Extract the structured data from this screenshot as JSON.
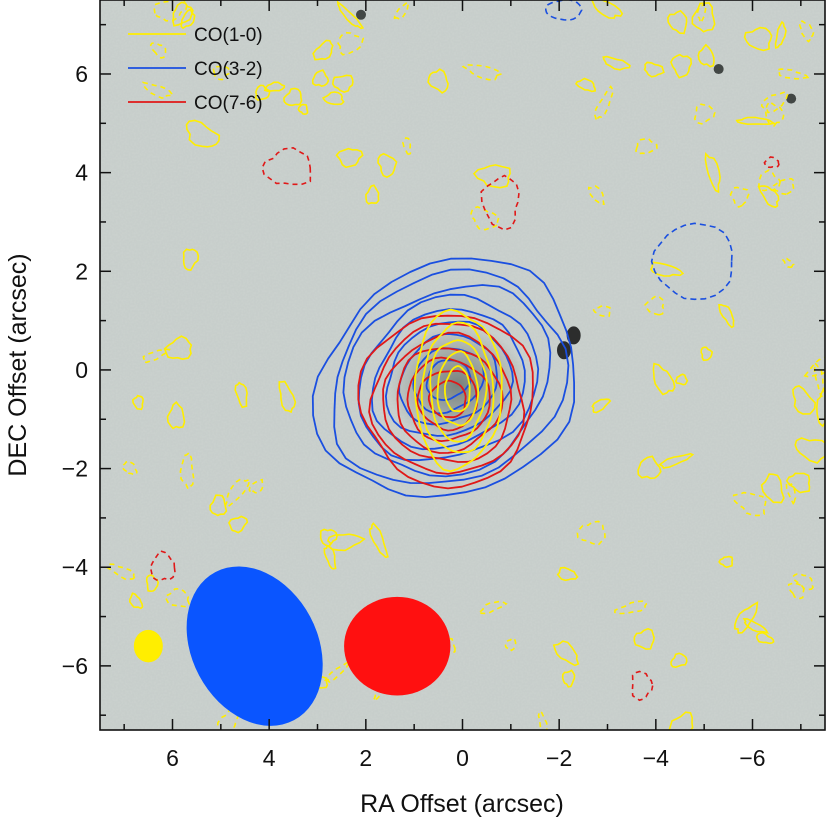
{
  "chart_data": {
    "type": "contour-map",
    "xlabel": "RA Offset (arcsec)",
    "ylabel": "DEC Offset (arcsec)",
    "xlim": [
      7.5,
      -7.5
    ],
    "ylim": [
      -7.3,
      7.5
    ],
    "x_ticks": [
      6,
      4,
      2,
      0,
      -2,
      -4,
      -6
    ],
    "y_ticks": [
      6,
      4,
      2,
      0,
      -2,
      -4,
      -6
    ],
    "x_tick_labels": [
      "6",
      "4",
      "2",
      "0",
      "−2",
      "−4",
      "−6"
    ],
    "y_tick_labels": [
      "6",
      "4",
      "2",
      "0",
      "−2",
      "−4",
      "−6"
    ],
    "background": "grayscale optical image",
    "legend": {
      "position": "top-left",
      "entries": [
        {
          "label": "CO(1-0)",
          "color": "#ffee00"
        },
        {
          "label": "CO(3-2)",
          "color": "#1a4fe0"
        },
        {
          "label": "CO(7-6)",
          "color": "#e01818"
        }
      ]
    },
    "series": [
      {
        "name": "CO(3-2)",
        "color": "#1a4fe0",
        "center": [
          0.3,
          -0.2
        ],
        "semi_axes": [
          2.8,
          2.3
        ],
        "angle_deg": -30,
        "levels": 9
      },
      {
        "name": "CO(7-6)",
        "color": "#e01818",
        "center": [
          0.3,
          -0.6
        ],
        "semi_axes": [
          1.8,
          1.75
        ],
        "angle_deg": 0,
        "levels": 7
      },
      {
        "name": "CO(1-0)",
        "color": "#ffee00",
        "center": [
          0.1,
          -0.4
        ],
        "semi_axes": [
          0.9,
          1.6
        ],
        "angle_deg": 0,
        "levels": 5
      }
    ],
    "beams": [
      {
        "name": "CO(1-0) beam",
        "color": "#ffee00",
        "center": [
          6.5,
          -5.6
        ],
        "semi_axes": [
          0.3,
          0.33
        ],
        "angle_deg": 0
      },
      {
        "name": "CO(3-2) beam",
        "color": "#0a55ff",
        "center": [
          4.3,
          -5.6
        ],
        "semi_axes": [
          1.3,
          1.7
        ],
        "angle_deg": -28
      },
      {
        "name": "CO(7-6) beam",
        "color": "#ff1010",
        "center": [
          1.35,
          -5.6
        ],
        "semi_axes": [
          1.1,
          1.0
        ],
        "angle_deg": 0
      }
    ],
    "dark_sources": [
      [
        -2.3,
        0.7
      ],
      [
        -2.1,
        0.4
      ],
      [
        2.1,
        7.2
      ],
      [
        -5.3,
        6.1
      ],
      [
        -6.8,
        5.5
      ]
    ]
  }
}
